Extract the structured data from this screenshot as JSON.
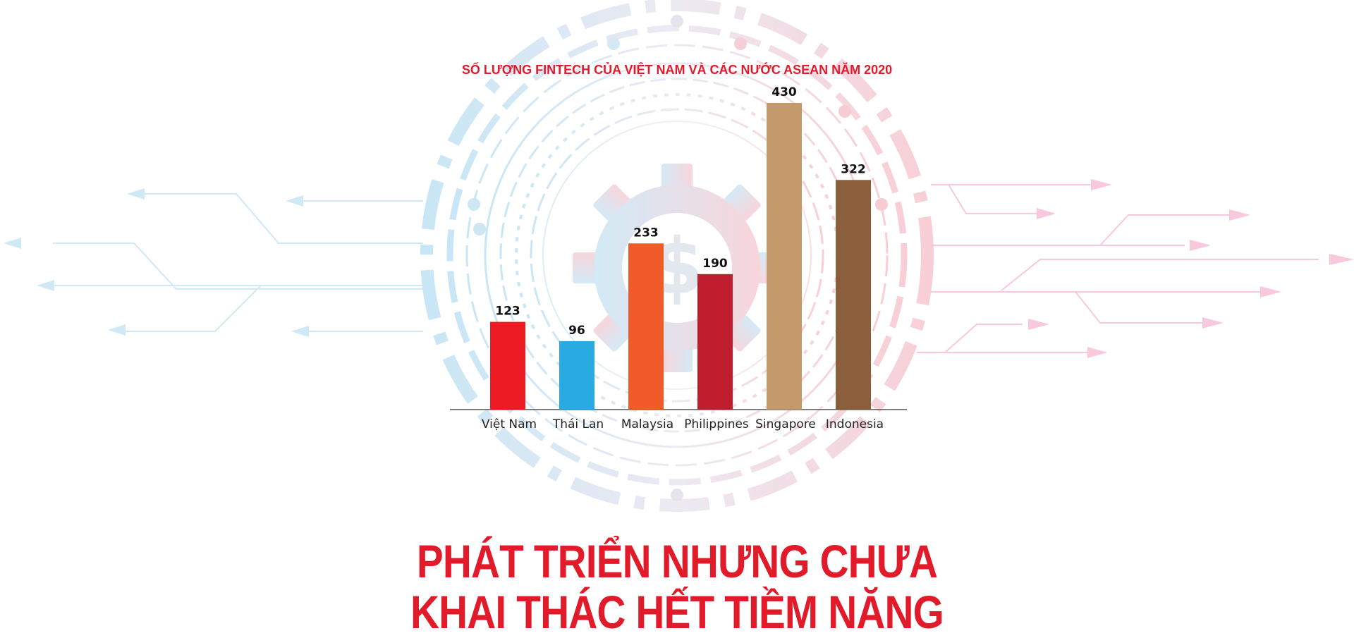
{
  "chart_data": {
    "type": "bar",
    "title": "SỐ LƯỢNG FINTECH CỦA VIỆT NAM VÀ CÁC NƯỚC ASEAN NĂM 2020",
    "categories": [
      "Việt Nam",
      "Thái Lan",
      "Malaysia",
      "Philippines",
      "Singapore",
      "Indonesia"
    ],
    "values": [
      123,
      96,
      233,
      190,
      430,
      322
    ],
    "colors": [
      "#ed1c24",
      "#29abe2",
      "#f15a29",
      "#be1e2d",
      "#c49a6c",
      "#8b5e3c"
    ],
    "ylim": [
      0,
      430
    ],
    "grid": false,
    "legend": "none"
  },
  "headline": {
    "line1": "PHÁT TRIỂN NHƯNG CHƯA",
    "line2": "KHAI THÁC HẾT TIỀM NĂNG"
  },
  "theme": {
    "title_color": "#e21b2a",
    "left_circuit_color": "#cfe9f6",
    "right_circuit_color": "#f8c8dc",
    "gear_blue": "#d8ecf7",
    "gear_pink": "#f9dbe2"
  }
}
